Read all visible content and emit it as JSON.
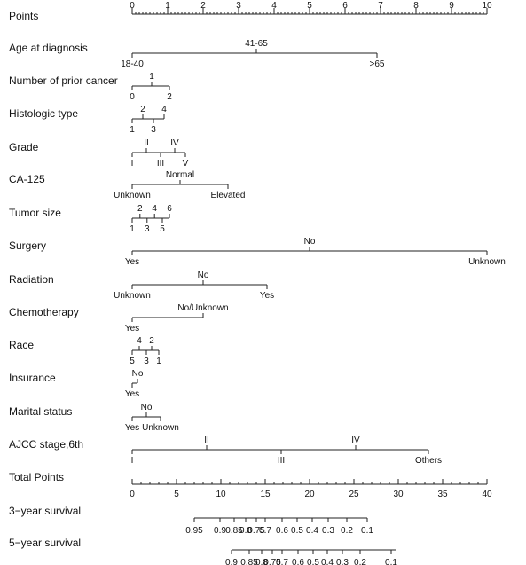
{
  "chart_data": {
    "type": "nomogram",
    "points_axis": {
      "label": "Points",
      "range": [
        0,
        10
      ],
      "major_ticks": [
        0,
        1,
        2,
        3,
        4,
        5,
        6,
        7,
        8,
        9,
        10
      ],
      "minor_step": 0.1
    },
    "variables": [
      {
        "label": "Age at diagnosis",
        "range": [
          0,
          6.9
        ],
        "levels": [
          {
            "text": "18-40",
            "points": 0,
            "pos": "below"
          },
          {
            "text": "41-65",
            "points": 3.5,
            "pos": "above"
          },
          {
            "text": ">65",
            "points": 6.9,
            "pos": "below"
          }
        ]
      },
      {
        "label": "Number of prior cancer",
        "range": [
          0,
          1.05
        ],
        "levels": [
          {
            "text": "0",
            "points": 0,
            "pos": "below"
          },
          {
            "text": "1",
            "points": 0.55,
            "pos": "above"
          },
          {
            "text": "2",
            "points": 1.05,
            "pos": "below"
          }
        ]
      },
      {
        "label": "Histologic type",
        "range": [
          0,
          0.9
        ],
        "levels": [
          {
            "text": "1",
            "points": 0,
            "pos": "below"
          },
          {
            "text": "2",
            "points": 0.3,
            "pos": "above"
          },
          {
            "text": "3",
            "points": 0.6,
            "pos": "below"
          },
          {
            "text": "4",
            "points": 0.9,
            "pos": "above"
          }
        ]
      },
      {
        "label": "Grade",
        "range": [
          0,
          1.5
        ],
        "levels": [
          {
            "text": "I",
            "points": 0,
            "pos": "below"
          },
          {
            "text": "II",
            "points": 0.4,
            "pos": "above"
          },
          {
            "text": "III",
            "points": 0.8,
            "pos": "below"
          },
          {
            "text": "IV",
            "points": 1.2,
            "pos": "above"
          },
          {
            "text": "V",
            "points": 1.5,
            "pos": "below"
          }
        ]
      },
      {
        "label": "CA-125",
        "range": [
          0,
          2.7
        ],
        "levels": [
          {
            "text": "Unknown",
            "points": 0,
            "pos": "below"
          },
          {
            "text": "Normal",
            "points": 1.35,
            "pos": "above"
          },
          {
            "text": "Elevated",
            "points": 2.7,
            "pos": "below"
          }
        ]
      },
      {
        "label": "Tumor size",
        "range": [
          0,
          1.05
        ],
        "levels": [
          {
            "text": "1",
            "points": 0,
            "pos": "below"
          },
          {
            "text": "2",
            "points": 0.22,
            "pos": "above"
          },
          {
            "text": "3",
            "points": 0.42,
            "pos": "below"
          },
          {
            "text": "4",
            "points": 0.63,
            "pos": "above"
          },
          {
            "text": "5",
            "points": 0.85,
            "pos": "below"
          },
          {
            "text": "6",
            "points": 1.05,
            "pos": "above"
          }
        ]
      },
      {
        "label": "Surgery",
        "range": [
          0,
          10
        ],
        "levels": [
          {
            "text": "Yes",
            "points": 0,
            "pos": "below"
          },
          {
            "text": "No",
            "points": 5,
            "pos": "above"
          },
          {
            "text": "Unknown",
            "points": 10,
            "pos": "below"
          }
        ]
      },
      {
        "label": "Radiation",
        "range": [
          0,
          3.8
        ],
        "levels": [
          {
            "text": "Unknown",
            "points": 0,
            "pos": "below"
          },
          {
            "text": "No",
            "points": 2.0,
            "pos": "above"
          },
          {
            "text": "Yes",
            "points": 3.8,
            "pos": "below"
          }
        ]
      },
      {
        "label": "Chemotherapy",
        "range": [
          0,
          2.0
        ],
        "levels": [
          {
            "text": "Yes",
            "points": 0,
            "pos": "below"
          },
          {
            "text": "No/Unknown",
            "points": 2.0,
            "pos": "above"
          }
        ]
      },
      {
        "label": "Race",
        "range": [
          0,
          0.75
        ],
        "levels": [
          {
            "text": "5",
            "points": 0,
            "pos": "below"
          },
          {
            "text": "4",
            "points": 0.2,
            "pos": "above"
          },
          {
            "text": "3",
            "points": 0.4,
            "pos": "below"
          },
          {
            "text": "2",
            "points": 0.55,
            "pos": "above"
          },
          {
            "text": "1",
            "points": 0.75,
            "pos": "below"
          }
        ]
      },
      {
        "label": "Insurance",
        "range": [
          0,
          0.15
        ],
        "levels": [
          {
            "text": "Yes",
            "points": 0,
            "pos": "below"
          },
          {
            "text": "No",
            "points": 0.15,
            "pos": "above"
          }
        ]
      },
      {
        "label": "Marital status",
        "range": [
          0,
          0.8
        ],
        "levels": [
          {
            "text": "Yes",
            "points": 0,
            "pos": "below"
          },
          {
            "text": "No",
            "points": 0.4,
            "pos": "above"
          },
          {
            "text": "Unknown",
            "points": 0.8,
            "pos": "below"
          }
        ]
      },
      {
        "label": "AJCC stage,6th",
        "range": [
          0,
          8.35
        ],
        "levels": [
          {
            "text": "I",
            "points": 0,
            "pos": "below"
          },
          {
            "text": "II",
            "points": 2.1,
            "pos": "above"
          },
          {
            "text": "III",
            "points": 4.2,
            "pos": "below"
          },
          {
            "text": "IV",
            "points": 6.3,
            "pos": "above"
          },
          {
            "text": "Others",
            "points": 8.35,
            "pos": "below"
          }
        ]
      }
    ],
    "total_points_axis": {
      "label": "Total Points",
      "range": [
        0,
        40
      ],
      "major_ticks": [
        0,
        5,
        10,
        15,
        20,
        25,
        30,
        35,
        40
      ],
      "minor_step": 1
    },
    "survival_axes": [
      {
        "label": "3−year survival",
        "range_total_points": [
          7.0,
          26.5
        ],
        "ticks": [
          {
            "text": "0.95",
            "total": 7.0
          },
          {
            "text": "0.9",
            "total": 9.9
          },
          {
            "text": "0.85",
            "total": 11.5
          },
          {
            "text": "0.8",
            "total": 12.8
          },
          {
            "text": "0.75",
            "total": 14.0
          },
          {
            "text": "0.7",
            "total": 15.0
          },
          {
            "text": "0.6",
            "total": 16.9
          },
          {
            "text": "0.5",
            "total": 18.6
          },
          {
            "text": "0.4",
            "total": 20.3
          },
          {
            "text": "0.3",
            "total": 22.1
          },
          {
            "text": "0.2",
            "total": 24.2
          },
          {
            "text": "0.1",
            "total": 26.5
          }
        ]
      },
      {
        "label": "5−year survival",
        "range_total_points": [
          11.2,
          29.8
        ],
        "ticks": [
          {
            "text": "0.9",
            "total": 11.2
          },
          {
            "text": "0.85",
            "total": 13.2
          },
          {
            "text": "0.8",
            "total": 14.6
          },
          {
            "text": "0.75",
            "total": 15.8
          },
          {
            "text": "0.7",
            "total": 16.9
          },
          {
            "text": "0.6",
            "total": 18.7
          },
          {
            "text": "0.5",
            "total": 20.4
          },
          {
            "text": "0.4",
            "total": 22.0
          },
          {
            "text": "0.3",
            "total": 23.7
          },
          {
            "text": "0.2",
            "total": 25.7
          },
          {
            "text": "0.1",
            "total": 29.2
          }
        ]
      }
    ]
  }
}
